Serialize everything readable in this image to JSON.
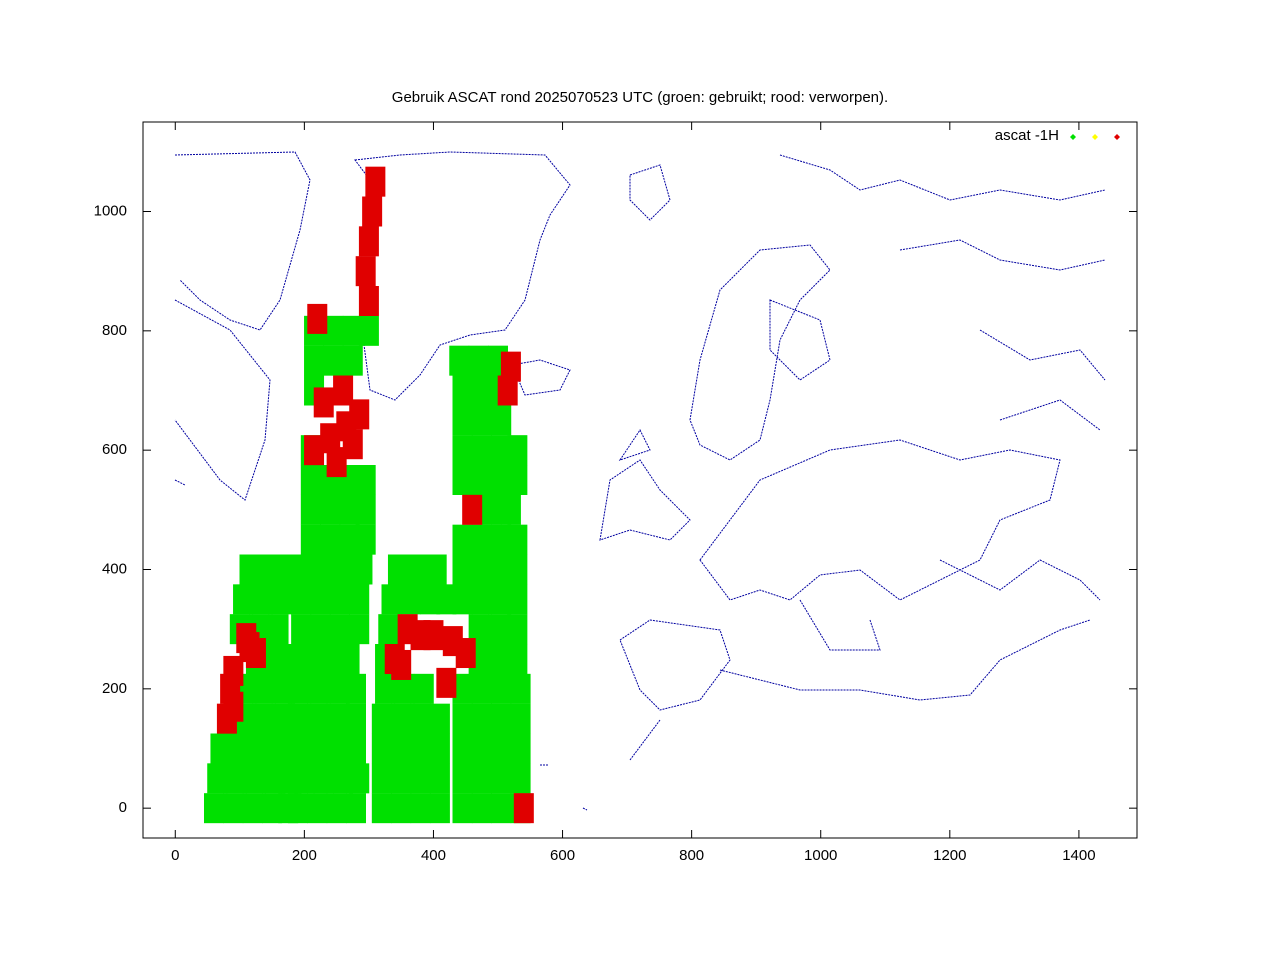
{
  "chart_data": {
    "type": "scatter",
    "title": "Gebruik ASCAT rond 2025070523 UTC (groen: gebruikt; rood: verworpen).",
    "xlim": [
      -50,
      1490
    ],
    "ylim": [
      -50,
      1150
    ],
    "xticks": [
      0,
      200,
      400,
      600,
      800,
      1000,
      1200,
      1400
    ],
    "yticks": [
      0,
      200,
      400,
      600,
      800,
      1000
    ],
    "legend": "top-right",
    "series": [
      {
        "name": "ascat -1H",
        "color": "#00e000",
        "x": [
          60,
          90,
          120,
          150,
          175,
          190,
          220,
          250,
          280,
          320,
          350,
          380,
          410,
          445,
          475,
          505,
          535,
          65,
          95,
          125,
          155,
          180,
          200,
          230,
          260,
          285,
          320,
          350,
          380,
          410,
          445,
          475,
          505,
          535,
          70,
          100,
          130,
          160,
          190,
          220,
          250,
          280,
          320,
          350,
          380,
          410,
          445,
          475,
          505,
          535,
          105,
          135,
          165,
          190,
          220,
          250,
          280,
          320,
          350,
          380,
          410,
          445,
          475,
          505,
          535,
          110,
          140,
          170,
          195,
          225,
          255,
          280,
          325,
          355,
          385,
          445,
          475,
          505,
          535,
          125,
          155,
          185,
          210,
          240,
          270,
          325,
          470,
          500,
          530,
          100,
          130,
          160,
          195,
          225,
          255,
          285,
          330,
          470,
          500,
          530,
          105,
          135,
          165,
          195,
          225,
          255,
          285,
          335,
          365,
          395,
          420,
          445,
          475,
          505,
          530,
          115,
          145,
          175,
          205,
          235,
          265,
          290,
          345,
          375,
          405,
          445,
          475,
          505,
          530,
          210,
          240,
          270,
          295,
          445,
          475,
          505,
          530,
          210,
          240,
          270,
          295,
          490,
          520,
          210,
          240,
          270,
          295,
          445,
          475,
          505,
          530,
          210,
          445,
          475,
          505,
          530,
          445,
          475,
          505,
          215,
          445,
          475,
          500,
          215,
          245,
          275,
          440,
          470,
          500,
          215,
          245,
          275,
          300
        ],
        "values": [
          0,
          0,
          0,
          0,
          0,
          0,
          0,
          0,
          0,
          0,
          0,
          0,
          0,
          0,
          0,
          0,
          0,
          50,
          50,
          50,
          50,
          50,
          50,
          50,
          50,
          50,
          50,
          50,
          50,
          50,
          50,
          50,
          50,
          50,
          100,
          100,
          100,
          100,
          100,
          100,
          100,
          100,
          100,
          100,
          100,
          100,
          100,
          100,
          100,
          100,
          150,
          150,
          150,
          150,
          150,
          150,
          150,
          150,
          150,
          150,
          150,
          150,
          150,
          150,
          150,
          200,
          200,
          200,
          200,
          200,
          200,
          200,
          200,
          200,
          200,
          200,
          200,
          200,
          200,
          250,
          250,
          250,
          250,
          250,
          250,
          250,
          250,
          250,
          250,
          300,
          300,
          300,
          300,
          300,
          300,
          300,
          300,
          300,
          300,
          300,
          350,
          350,
          350,
          350,
          350,
          350,
          350,
          350,
          350,
          350,
          350,
          350,
          350,
          350,
          350,
          400,
          400,
          400,
          400,
          400,
          400,
          400,
          400,
          400,
          400,
          400,
          400,
          400,
          400,
          450,
          450,
          450,
          450,
          450,
          450,
          450,
          450,
          500,
          500,
          500,
          500,
          500,
          500,
          550,
          550,
          550,
          550,
          550,
          550,
          550,
          550,
          600,
          600,
          600,
          600,
          600,
          650,
          650,
          650,
          700,
          700,
          700,
          700,
          750,
          750,
          750,
          750,
          750,
          750,
          800,
          800,
          800,
          800
        ]
      },
      {
        "color": "#ffff00",
        "x": [],
        "values": []
      },
      {
        "color": "#e00000",
        "x": [
          80,
          90,
          85,
          90,
          115,
          125,
          110,
          215,
          240,
          265,
          285,
          230,
          260,
          275,
          250,
          300,
          295,
          300,
          305,
          310,
          220,
          350,
          380,
          400,
          430,
          450,
          360,
          420,
          340,
          460,
          515,
          520,
          540
        ],
        "values": [
          150,
          170,
          200,
          230,
          270,
          260,
          285,
          600,
          620,
          640,
          660,
          680,
          700,
          610,
          580,
          850,
          900,
          950,
          1000,
          1050,
          820,
          240,
          290,
          290,
          280,
          260,
          300,
          210,
          250,
          500,
          700,
          740,
          0
        ]
      }
    ]
  }
}
